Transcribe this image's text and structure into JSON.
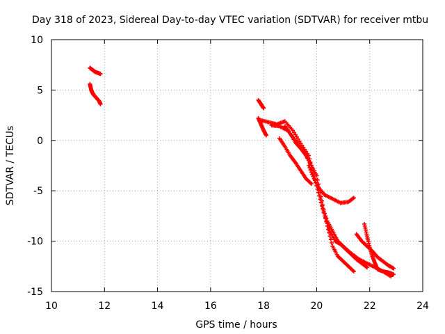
{
  "chart_data": {
    "type": "scatter",
    "title": "Day 318 of 2023, Sidereal Day-to-day VTEC variation (SDTVAR) for receiver mtbu",
    "xlabel": "GPS time / hours",
    "ylabel": "SDTVAR / TECUs",
    "xlim": [
      10,
      24
    ],
    "ylim": [
      -15,
      10
    ],
    "xticks": [
      10,
      12,
      14,
      16,
      18,
      20,
      22,
      24
    ],
    "yticks": [
      10,
      5,
      0,
      -5,
      -10,
      -15
    ],
    "grid": true,
    "marker": "+",
    "color": "#ff0000",
    "series": [
      {
        "name": "track-a",
        "x": [
          11.45,
          11.55,
          11.65,
          11.75,
          11.85
        ],
        "y": [
          7.2,
          7.0,
          6.8,
          6.7,
          6.6
        ]
      },
      {
        "name": "track-b",
        "x": [
          11.45,
          11.5,
          11.55,
          11.6,
          11.7,
          11.8,
          11.85
        ],
        "y": [
          5.6,
          5.0,
          4.7,
          4.5,
          4.2,
          3.9,
          3.6
        ]
      },
      {
        "name": "track-c",
        "x": [
          17.8,
          17.9,
          18.0
        ],
        "y": [
          4.0,
          3.6,
          3.2
        ]
      },
      {
        "name": "track-d",
        "x": [
          17.8,
          17.9,
          18.0,
          18.1
        ],
        "y": [
          2.2,
          1.6,
          1.0,
          0.5
        ]
      },
      {
        "name": "track-e",
        "x": [
          17.9,
          18.2,
          18.5,
          18.8,
          19.1,
          19.4,
          19.7,
          19.9,
          20.1,
          20.3,
          20.5,
          20.7,
          20.9,
          21.1,
          21.3,
          21.5,
          21.7,
          21.9
        ],
        "y": [
          2.0,
          1.8,
          1.6,
          1.9,
          1.0,
          -0.3,
          -1.5,
          -3.5,
          -5.5,
          -7.5,
          -9.0,
          -10.0,
          -10.3,
          -10.8,
          -11.3,
          -11.8,
          -12.2,
          -12.6
        ]
      },
      {
        "name": "track-f",
        "x": [
          18.3,
          18.6,
          18.9,
          19.2,
          19.5,
          19.8,
          20.0,
          20.2,
          20.4,
          20.6,
          20.8,
          21.0,
          21.3,
          21.6,
          21.9,
          22.2,
          22.5,
          22.8
        ],
        "y": [
          1.5,
          1.4,
          1.0,
          0.0,
          -1.0,
          -2.5,
          -4.5,
          -6.5,
          -8.0,
          -9.0,
          -10.0,
          -10.5,
          -11.2,
          -11.8,
          -12.2,
          -12.6,
          -13.0,
          -13.5
        ]
      },
      {
        "name": "track-g",
        "x": [
          18.8,
          19.0,
          19.2,
          19.4,
          19.6,
          19.8,
          20.0,
          20.2,
          20.4,
          20.6,
          20.8,
          21.0,
          21.2,
          21.4
        ],
        "y": [
          1.4,
          0.7,
          -0.2,
          -0.8,
          -1.5,
          -2.5,
          -3.5,
          -6.0,
          -8.5,
          -10.5,
          -11.5,
          -12.0,
          -12.5,
          -13.0
        ]
      },
      {
        "name": "track-h",
        "x": [
          18.6,
          18.8,
          19.0,
          19.2,
          19.4,
          19.6,
          19.8
        ],
        "y": [
          0.2,
          -0.6,
          -1.5,
          -2.2,
          -3.0,
          -3.8,
          -4.3
        ]
      },
      {
        "name": "track-i",
        "x": [
          19.7,
          19.9,
          20.1,
          20.3,
          20.6,
          20.9,
          21.2,
          21.4
        ],
        "y": [
          -2.5,
          -3.8,
          -4.8,
          -5.4,
          -5.8,
          -6.2,
          -6.1,
          -5.7
        ]
      },
      {
        "name": "track-j",
        "x": [
          21.5,
          21.7,
          21.9,
          22.1,
          22.3,
          22.5,
          22.7,
          22.9
        ],
        "y": [
          -9.3,
          -10.0,
          -10.5,
          -11.0,
          -11.6,
          -12.0,
          -12.4,
          -12.7
        ]
      },
      {
        "name": "track-k",
        "x": [
          21.8,
          21.9,
          22.0,
          22.1,
          22.2,
          22.3,
          22.5,
          22.7,
          22.9
        ],
        "y": [
          -8.3,
          -9.5,
          -10.6,
          -11.5,
          -12.2,
          -12.8,
          -13.0,
          -13.1,
          -13.3
        ]
      }
    ]
  }
}
